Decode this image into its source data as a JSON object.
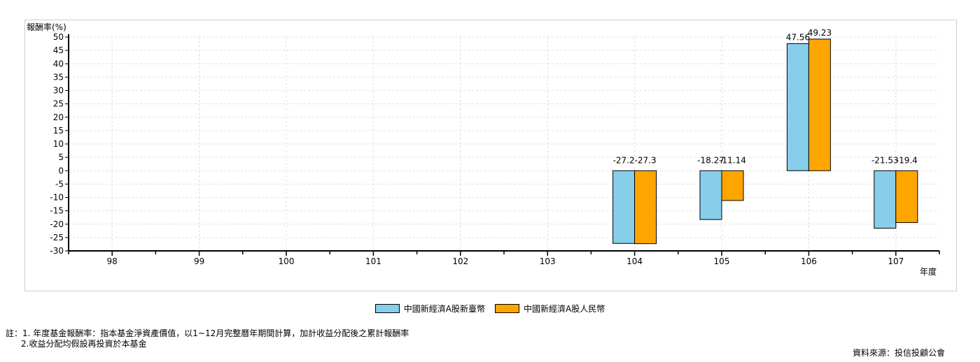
{
  "chart_data": {
    "type": "bar",
    "ylabel": "報酬率(%)",
    "xlabel": "年度",
    "categories": [
      "98",
      "99",
      "100",
      "101",
      "102",
      "103",
      "104",
      "105",
      "106",
      "107"
    ],
    "series": [
      {
        "name": "中國新經濟A股新臺幣",
        "color": "#87ceeb",
        "values": [
          null,
          null,
          null,
          null,
          null,
          null,
          -27.2,
          -18.27,
          47.56,
          -21.53
        ],
        "labels": [
          "",
          "",
          "",
          "",
          "",
          "",
          "-27.2",
          "-18.27",
          "47.56",
          "-21.53"
        ]
      },
      {
        "name": "中國新經濟A股人民幣",
        "color": "#ffa500",
        "values": [
          null,
          null,
          null,
          null,
          null,
          null,
          -27.3,
          -11.14,
          49.23,
          -19.4
        ],
        "labels": [
          "",
          "",
          "",
          "",
          "",
          "",
          "-27.3",
          "-11.14",
          "49.23",
          "-19.4"
        ]
      }
    ],
    "yticks": [
      50,
      45,
      40,
      35,
      30,
      25,
      20,
      15,
      10,
      5,
      0,
      -5,
      -10,
      -15,
      -20,
      -25,
      -30
    ],
    "ylim": [
      -30,
      50
    ],
    "grid": true,
    "legend_position": "bottom"
  },
  "notes": {
    "line1": "註：1. 年度基金報酬率：指本基金淨資產價值，以1~12月完整曆年期間計算，加計收益分配後之累計報酬率",
    "line2": "2.收益分配均假設再投資於本基金"
  },
  "source": "資料來源：投信投顧公會"
}
